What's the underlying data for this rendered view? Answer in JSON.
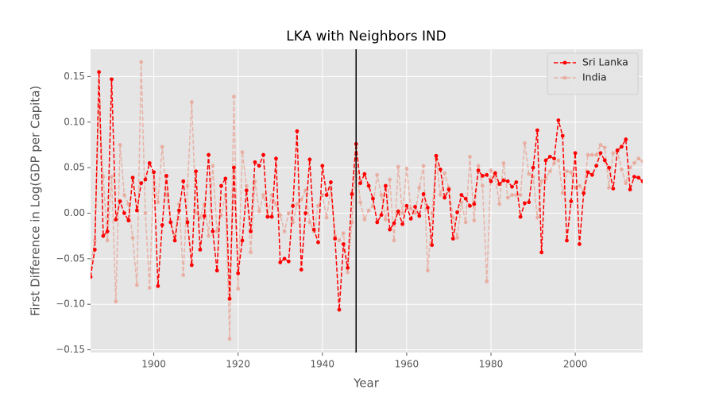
{
  "chart_data": {
    "type": "line",
    "title": "LKA with Neighbors IND",
    "xlabel": "Year",
    "ylabel": "First Difference in Log(GDP per Capita)",
    "x": [
      1885,
      1886,
      1887,
      1888,
      1889,
      1890,
      1891,
      1892,
      1893,
      1894,
      1895,
      1896,
      1897,
      1898,
      1899,
      1900,
      1901,
      1902,
      1903,
      1904,
      1905,
      1906,
      1907,
      1908,
      1909,
      1910,
      1911,
      1912,
      1913,
      1914,
      1915,
      1916,
      1917,
      1918,
      1919,
      1920,
      1921,
      1922,
      1923,
      1924,
      1925,
      1926,
      1927,
      1928,
      1929,
      1930,
      1931,
      1932,
      1933,
      1934,
      1935,
      1936,
      1937,
      1938,
      1939,
      1940,
      1941,
      1942,
      1943,
      1944,
      1945,
      1946,
      1947,
      1948,
      1949,
      1950,
      1951,
      1952,
      1953,
      1954,
      1955,
      1956,
      1957,
      1958,
      1959,
      1960,
      1961,
      1962,
      1963,
      1964,
      1965,
      1966,
      1967,
      1968,
      1969,
      1970,
      1971,
      1972,
      1973,
      1974,
      1975,
      1976,
      1977,
      1978,
      1979,
      1980,
      1981,
      1982,
      1983,
      1984,
      1985,
      1986,
      1987,
      1988,
      1989,
      1990,
      1991,
      1992,
      1993,
      1994,
      1995,
      1996,
      1997,
      1998,
      1999,
      2000,
      2001,
      2002,
      2003,
      2004,
      2005,
      2006,
      2007,
      2008,
      2009,
      2010,
      2011,
      2012,
      2013,
      2014,
      2015,
      2016
    ],
    "series": [
      {
        "name": "Sri Lanka",
        "color": "#ff0000",
        "values": [
          -0.07,
          -0.04,
          0.155,
          -0.025,
          -0.02,
          0.147,
          -0.007,
          0.013,
          0.0,
          -0.008,
          0.039,
          0.003,
          0.033,
          0.037,
          0.055,
          0.045,
          -0.08,
          -0.013,
          0.041,
          -0.01,
          -0.03,
          0.003,
          0.035,
          -0.01,
          -0.057,
          0.046,
          -0.04,
          -0.003,
          0.064,
          -0.02,
          -0.063,
          0.03,
          0.038,
          -0.094,
          0.05,
          -0.066,
          -0.03,
          0.025,
          -0.02,
          0.056,
          0.052,
          0.064,
          -0.004,
          -0.004,
          0.06,
          -0.054,
          -0.05,
          -0.053,
          0.008,
          0.09,
          -0.062,
          0.0,
          0.059,
          -0.018,
          -0.032,
          0.052,
          0.02,
          0.034,
          -0.028,
          -0.106,
          -0.034,
          -0.06,
          0.021,
          0.076,
          0.033,
          0.043,
          0.03,
          0.016,
          -0.01,
          -0.002,
          0.03,
          -0.018,
          -0.011,
          0.002,
          -0.012,
          0.008,
          -0.006,
          0.007,
          -0.003,
          0.021,
          0.006,
          -0.035,
          0.063,
          0.048,
          0.017,
          0.026,
          -0.028,
          0.001,
          0.02,
          0.016,
          0.008,
          0.01,
          0.047,
          0.041,
          0.042,
          0.035,
          0.044,
          0.032,
          0.036,
          0.035,
          0.029,
          0.034,
          -0.004,
          0.011,
          0.012,
          0.05,
          0.091,
          -0.043,
          0.058,
          0.062,
          0.06,
          0.102,
          0.085,
          -0.03,
          0.013,
          0.066,
          -0.034,
          0.022,
          0.045,
          0.042,
          0.052,
          0.066,
          0.058,
          0.05,
          0.027,
          0.069,
          0.073,
          0.081,
          0.026,
          0.04,
          0.039,
          0.035
        ]
      },
      {
        "name": "India",
        "color": "#e8a090",
        "values": [
          -0.06,
          -0.03,
          0.12,
          0.04,
          -0.03,
          0.04,
          -0.097,
          0.075,
          0.02,
          0.01,
          -0.027,
          -0.079,
          0.166,
          0.0,
          -0.082,
          0.045,
          0.012,
          0.073,
          0.02,
          -0.01,
          -0.025,
          0.01,
          -0.068,
          0.03,
          0.122,
          0.0,
          -0.005,
          0.01,
          -0.025,
          0.052,
          -0.02,
          -0.002,
          0.02,
          -0.138,
          0.128,
          -0.083,
          0.067,
          0.03,
          -0.043,
          0.035,
          0.002,
          0.02,
          -0.002,
          0.02,
          0.01,
          -0.002,
          -0.02,
          0.0,
          -0.01,
          0.01,
          0.015,
          0.025,
          -0.01,
          -0.02,
          0.008,
          0.02,
          -0.005,
          0.027,
          -0.025,
          -0.03,
          -0.022,
          -0.065,
          -0.01,
          0.06,
          0.012,
          -0.007,
          0.003,
          0.008,
          0.042,
          0.02,
          -0.007,
          0.037,
          -0.03,
          0.051,
          0.0,
          0.049,
          0.005,
          0.0,
          0.028,
          0.052,
          -0.063,
          0.0,
          0.06,
          0.02,
          0.044,
          0.028,
          -0.005,
          -0.027,
          0.012,
          -0.01,
          0.062,
          -0.008,
          0.052,
          0.03,
          -0.075,
          0.047,
          0.04,
          0.01,
          0.055,
          0.017,
          0.02,
          0.02,
          0.02,
          0.077,
          0.043,
          0.04,
          -0.005,
          0.035,
          0.038,
          0.046,
          0.055,
          0.058,
          0.022,
          0.046,
          0.045,
          0.028,
          0.03,
          0.025,
          0.064,
          0.064,
          0.064,
          0.075,
          0.072,
          0.028,
          0.066,
          0.068,
          0.048,
          0.033,
          0.05,
          0.055,
          0.06,
          0.057
        ]
      }
    ],
    "vline": 1948,
    "xlim": [
      1885,
      2016
    ],
    "ylim": [
      -0.153,
      0.18
    ],
    "xticks": [
      1900,
      1920,
      1940,
      1960,
      1980,
      2000
    ],
    "yticks": [
      {
        "value": -0.15,
        "label": "−0.15"
      },
      {
        "value": -0.1,
        "label": "−0.10"
      },
      {
        "value": -0.05,
        "label": "−0.05"
      },
      {
        "value": 0,
        "label": "0.00"
      },
      0.05,
      {
        "value": 0.1,
        "label": "0.10"
      },
      0.15
    ],
    "grid": true,
    "legend": "upper right"
  }
}
